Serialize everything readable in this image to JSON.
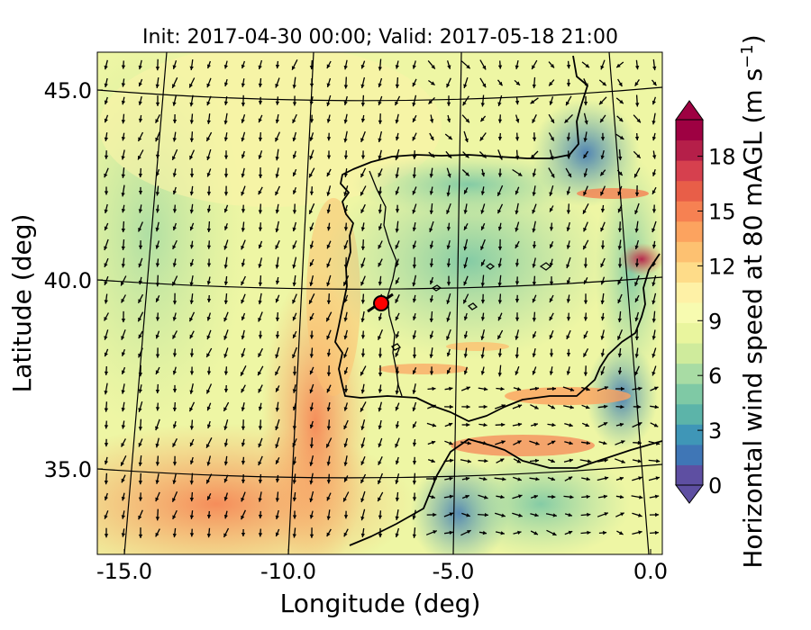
{
  "title": "Init: 2017-04-30 00:00; Valid: 2017-05-18 21:00",
  "x_axis": {
    "label": "Longitude (deg)",
    "ticks": [
      {
        "value": -15.0,
        "label": "-15.0"
      },
      {
        "value": -10.0,
        "label": "-10.0"
      },
      {
        "value": -5.0,
        "label": "-5.0"
      },
      {
        "value": 0.0,
        "label": "0.0"
      }
    ]
  },
  "y_axis": {
    "label": "Latitude (deg)",
    "ticks": [
      {
        "value": 45.0,
        "label": "45.0"
      },
      {
        "value": 40.0,
        "label": "40.0"
      },
      {
        "value": 35.0,
        "label": "35.0"
      }
    ]
  },
  "colorbar": {
    "label_main": "Horizontal wind speed at 80 mAGL (m s",
    "label_exp": "−1",
    "label_close": ")",
    "min": 0,
    "max": 20,
    "extend": "both",
    "ticks": [
      {
        "value": 0,
        "label": "0"
      },
      {
        "value": 3,
        "label": "3"
      },
      {
        "value": 6,
        "label": "6"
      },
      {
        "value": 9,
        "label": "9"
      },
      {
        "value": 12,
        "label": "12"
      },
      {
        "value": 15,
        "label": "15"
      },
      {
        "value": 18,
        "label": "18"
      }
    ],
    "colors": [
      "#5e4fa2",
      "#3f76b6",
      "#3f96b7",
      "#5cb4a9",
      "#7fc9a5",
      "#a8dca4",
      "#cfeb9c",
      "#e9f59e",
      "#f7fbb0",
      "#fef1a6",
      "#fedc89",
      "#fdc171",
      "#fca35f",
      "#f68152",
      "#e85e48",
      "#d6404e",
      "#b51f49",
      "#9e0142"
    ]
  },
  "map": {
    "region": "Iberian Peninsula",
    "lon_range": [
      -16,
      0
    ],
    "lat_range": [
      33,
      46
    ],
    "graticule_lons": [
      -15,
      -10,
      -5,
      0
    ],
    "graticule_lats": [
      35,
      40,
      45
    ],
    "marker": {
      "lon": -7.6,
      "lat": 39.3,
      "color": "#ff0000"
    },
    "background_field": "wind speed contours with wind direction arrows (predominantly northerly, southward)"
  }
}
